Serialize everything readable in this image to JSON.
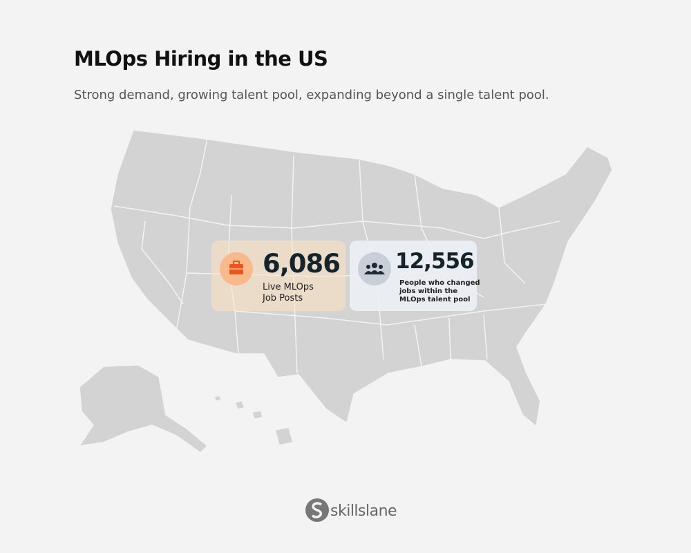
{
  "header": {
    "title": "MLOps Hiring in the US",
    "subtitle": "Strong demand, growing talent pool, expanding beyond a single talent pool."
  },
  "cards": [
    {
      "value": "6,086",
      "label": "Live MLOps Job Posts"
    },
    {
      "value": "12,556",
      "label": "People who changed jobs within the MLOps talent pool"
    }
  ],
  "footer": {
    "brand": "skillslane"
  }
}
